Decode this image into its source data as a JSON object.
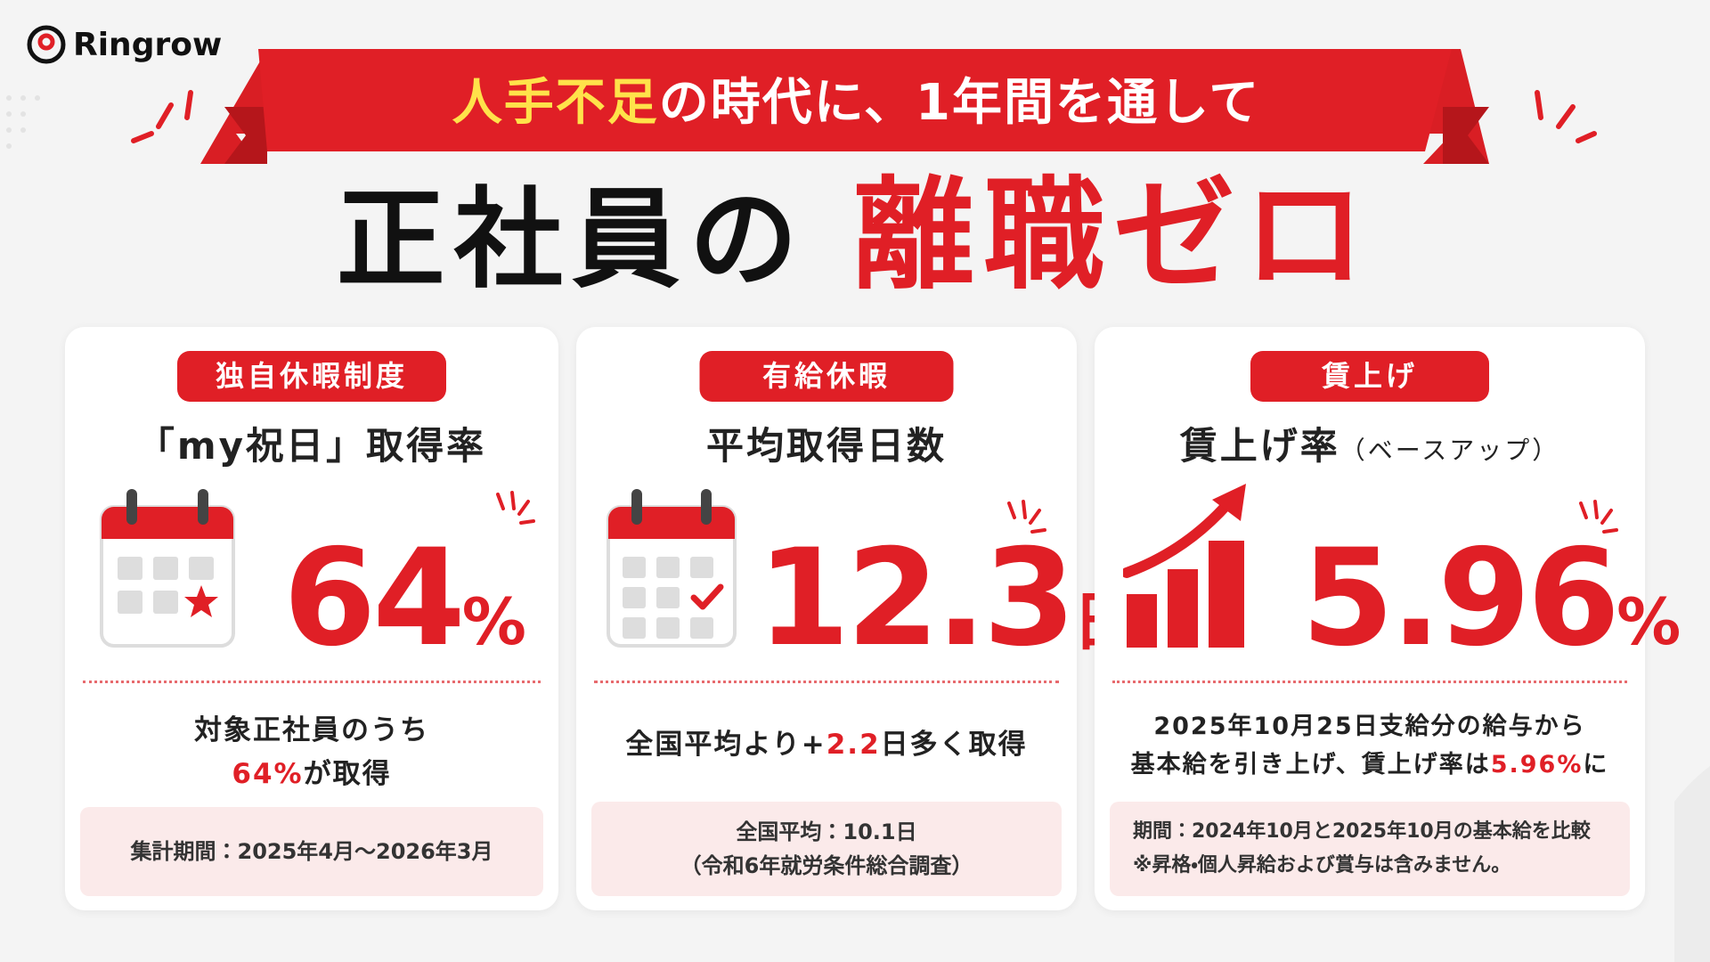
{
  "header": {
    "logo": "Ringrow",
    "banner_highlight": "人手不足",
    "banner_rest": "の時代に、1年間を通して",
    "headline": "正社員の",
    "headline_highlight": "離職ゼロ"
  },
  "cards": [
    {
      "tag": "独自休暇制度",
      "title": "「my祝日」取得率",
      "stat": "64",
      "unit": "%",
      "desc_line1": "対象正社員のうち",
      "desc_highlight": "64%",
      "desc_rest": "が取得",
      "note_lines": [
        "集計期間：2025年4月〜2026年3月"
      ]
    },
    {
      "tag": "有給休暇",
      "title": "平均取得日数",
      "stat": "12.3",
      "unit": "日",
      "desc_before": "全国平均より+",
      "desc_highlight": "2.2",
      "desc_rest": "日多く取得",
      "note_lines": [
        "全国平均：10.1日",
        "（令和6年就労条件総合調査）"
      ]
    },
    {
      "tag": "賃上げ",
      "title": "賃上げ率",
      "title_sub": "（ベースアップ）",
      "stat": "5.96",
      "unit": "%",
      "desc_line1": "2025年10月25日支給分の給与から",
      "desc_before": "基本給を引き上げ、賃上げ率は",
      "desc_highlight": "5.96%",
      "desc_rest": "に",
      "note_lines": [
        "期間：2024年10月と2025年10月の基本給を比較",
        "※昇格・個人昇給および賞与は含みません。"
      ]
    }
  ]
}
